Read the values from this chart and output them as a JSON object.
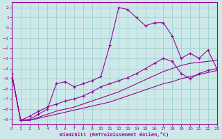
{
  "background_color": "#cce8e8",
  "grid_color": "#99cccc",
  "line_color": "#990099",
  "xlabel": "Windchill (Refroidissement éolien,°C)",
  "xlim": [
    0,
    23
  ],
  "ylim": [
    -9.5,
    2.5
  ],
  "xticks": [
    0,
    1,
    2,
    3,
    4,
    5,
    6,
    7,
    8,
    9,
    10,
    11,
    12,
    13,
    14,
    15,
    16,
    17,
    18,
    19,
    20,
    21,
    22,
    23
  ],
  "yticks": [
    2,
    1,
    0,
    -1,
    -2,
    -3,
    -4,
    -5,
    -6,
    -7,
    -8,
    -9
  ],
  "line1_x": [
    0,
    1,
    2,
    3,
    4,
    5,
    6,
    7,
    8,
    9,
    10,
    11,
    12,
    13,
    14,
    15,
    16,
    17,
    18,
    19,
    20,
    21,
    22,
    23
  ],
  "line1_y": [
    -4.5,
    -9.1,
    -9.1,
    -8.9,
    -8.7,
    -8.5,
    -8.3,
    -8.1,
    -7.9,
    -7.7,
    -7.5,
    -7.3,
    -7.0,
    -6.7,
    -6.4,
    -6.1,
    -5.8,
    -5.5,
    -5.3,
    -5.0,
    -4.8,
    -4.6,
    -4.4,
    -4.2
  ],
  "line2_x": [
    0,
    1,
    2,
    3,
    4,
    5,
    6,
    7,
    8,
    9,
    10,
    11,
    12,
    13,
    14,
    15,
    16,
    17,
    18,
    19,
    20,
    21,
    22,
    23
  ],
  "line2_y": [
    -4.5,
    -9.1,
    -9.1,
    -8.8,
    -8.5,
    -8.2,
    -8.0,
    -7.8,
    -7.5,
    -7.2,
    -6.9,
    -6.6,
    -6.3,
    -5.9,
    -5.5,
    -5.1,
    -4.7,
    -4.3,
    -4.0,
    -3.7,
    -3.5,
    -3.4,
    -3.3,
    -3.2
  ],
  "line3_x": [
    0,
    1,
    2,
    3,
    4,
    5,
    6,
    7,
    8,
    9,
    10,
    11,
    12,
    13,
    14,
    15,
    16,
    17,
    18,
    19,
    20,
    21,
    22,
    23
  ],
  "line3_y": [
    -4.5,
    -9.1,
    -9.0,
    -8.5,
    -8.0,
    -5.5,
    -5.3,
    -5.8,
    -5.5,
    -5.2,
    -4.8,
    -1.7,
    2.0,
    1.8,
    1.0,
    0.2,
    0.5,
    0.5,
    -0.8,
    -3.0,
    -2.5,
    -3.0,
    -2.2,
    -4.0
  ],
  "line4_x": [
    0,
    1,
    2,
    3,
    4,
    5,
    6,
    7,
    8,
    9,
    10,
    11,
    12,
    13,
    14,
    15,
    16,
    17,
    18,
    19,
    20,
    21,
    22,
    23
  ],
  "line4_y": [
    -4.5,
    -9.1,
    -8.7,
    -8.2,
    -7.8,
    -7.5,
    -7.2,
    -7.0,
    -6.7,
    -6.3,
    -5.8,
    -5.5,
    -5.2,
    -4.9,
    -4.5,
    -4.0,
    -3.5,
    -3.0,
    -3.3,
    -4.5,
    -5.0,
    -4.5,
    -4.2,
    -4.0
  ]
}
